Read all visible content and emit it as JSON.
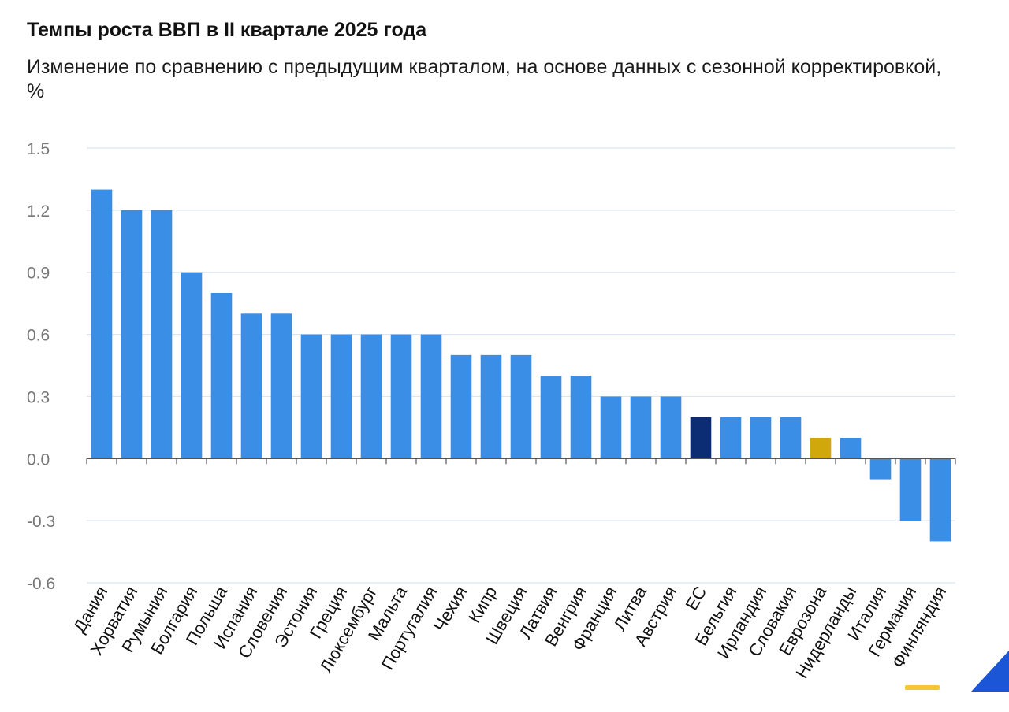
{
  "header": {
    "title": "Темпы роста ВВП в II квартале 2025 года",
    "subtitle": "Изменение по сравнению с предыдущим кварталом, на основе данных с сезонной корректировкой, %"
  },
  "chart_data": {
    "type": "bar",
    "title": "Темпы роста ВВП в II квартале 2025 года",
    "subtitle": "Изменение по сравнению с предыдущим кварталом, на основе данных с сезонной корректировкой, %",
    "xlabel": "",
    "ylabel": "",
    "ylim": [
      -0.6,
      1.5
    ],
    "yticks": [
      1.5,
      1.2,
      0.9,
      0.6,
      0.3,
      0.0,
      -0.3,
      -0.6
    ],
    "ytick_labels": [
      "1.5",
      "1.2",
      "0.9",
      "0.6",
      "0.3",
      "0.0",
      "-0.3",
      "-0.6"
    ],
    "grid": true,
    "categories": [
      "Дания",
      "Хорватия",
      "Румыния",
      "Болгария",
      "Польша",
      "Испания",
      "Словения",
      "Эстония",
      "Греция",
      "Люксембург",
      "Мальта",
      "Португалия",
      "Чехия",
      "Кипр",
      "Швеция",
      "Латвия",
      "Венгрия",
      "Франция",
      "Литва",
      "Австрия",
      "ЕС",
      "Бельгия",
      "Ирландия",
      "Словакия",
      "Еврозона",
      "Нидерланды",
      "Италия",
      "Германия",
      "Финляндия"
    ],
    "values": [
      1.3,
      1.2,
      1.2,
      0.9,
      0.8,
      0.7,
      0.7,
      0.6,
      0.6,
      0.6,
      0.6,
      0.6,
      0.5,
      0.5,
      0.5,
      0.4,
      0.4,
      0.3,
      0.3,
      0.3,
      0.2,
      0.2,
      0.2,
      0.2,
      0.1,
      0.1,
      -0.1,
      -0.3,
      -0.4
    ],
    "colors": {
      "default": "#3a8ee6",
      "highlight": {
        "ЕС": "#0c2c74",
        "Еврозона": "#d1a80c"
      },
      "grid": "#dbe6f2",
      "axis": "#555555",
      "tick_text": "#777777",
      "category_text": "#111111"
    }
  },
  "decor": {
    "corner_logo_color": "#1a56d6",
    "corner_mark_color": "#f5c533"
  }
}
